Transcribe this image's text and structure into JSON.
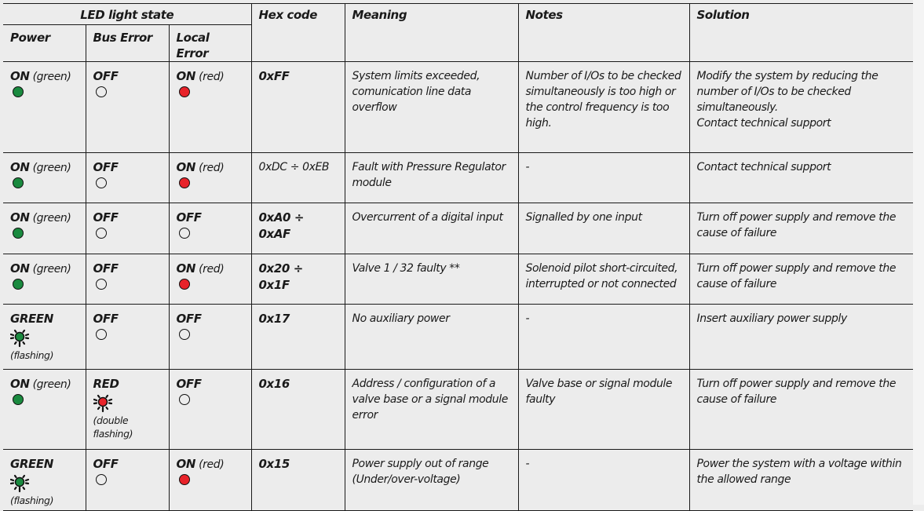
{
  "headers": {
    "led_group": "LED light state",
    "power": "Power",
    "bus_error": "Bus Error",
    "local_error": "Local Error",
    "hex_code": "Hex code",
    "meaning": "Meaning",
    "notes": "Notes",
    "solution": "Solution"
  },
  "colors": {
    "green": "#1a8a3f",
    "red": "#e8232a",
    "off": "#ececec"
  },
  "rows": [
    {
      "power": {
        "state": "ON",
        "sub": "(green)",
        "led": "green",
        "flashing": false
      },
      "bus": {
        "state": "OFF",
        "sub": "",
        "led": "off",
        "flashing": false
      },
      "local": {
        "state": "ON",
        "sub": "(red)",
        "led": "red",
        "flashing": false
      },
      "hex": "0xFF",
      "hex_bold": true,
      "meaning": "System limits exceeded, comunication line data overflow",
      "notes": "Number of I/Os to be checked simultaneously is too high or the control frequency is too high.",
      "solution": "Modify the system by reducing the number of I/Os to be checked simultaneously.",
      "solution2": "Contact technical support"
    },
    {
      "power": {
        "state": "ON",
        "sub": "(green)",
        "led": "green",
        "flashing": false
      },
      "bus": {
        "state": "OFF",
        "sub": "",
        "led": "off",
        "flashing": false
      },
      "local": {
        "state": "ON",
        "sub": "(red)",
        "led": "red",
        "flashing": false
      },
      "hex": "0xDC ÷ 0xEB",
      "hex_bold": false,
      "meaning": "Fault with Pressure Regulator module",
      "notes": "-",
      "solution": "Contact technical support"
    },
    {
      "power": {
        "state": "ON",
        "sub": "(green)",
        "led": "green",
        "flashing": false
      },
      "bus": {
        "state": "OFF",
        "sub": "",
        "led": "off",
        "flashing": false
      },
      "local": {
        "state": "OFF",
        "sub": "",
        "led": "off",
        "flashing": false
      },
      "hex": "0xA0 ÷ 0xAF",
      "hex_bold": true,
      "meaning": "Overcurrent of a digital input",
      "notes": "Signalled by one input",
      "solution": "Turn off power supply and remove the cause of failure"
    },
    {
      "power": {
        "state": "ON",
        "sub": "(green)",
        "led": "green",
        "flashing": false
      },
      "bus": {
        "state": "OFF",
        "sub": "",
        "led": "off",
        "flashing": false
      },
      "local": {
        "state": "ON",
        "sub": "(red)",
        "led": "red",
        "flashing": false
      },
      "hex": "0x20 ÷ 0x1F",
      "hex_bold": true,
      "meaning": "Valve 1 / 32 faulty **",
      "notes": "Solenoid pilot short-circuited, interrupted or not connected",
      "solution": "Turn off power supply and remove the cause of failure"
    },
    {
      "power": {
        "state": "GREEN",
        "sub": "(flashing)",
        "led": "green",
        "flashing": true
      },
      "bus": {
        "state": "OFF",
        "sub": "",
        "led": "off",
        "flashing": false
      },
      "local": {
        "state": "OFF",
        "sub": "",
        "led": "off",
        "flashing": false
      },
      "hex": "0x17",
      "hex_bold": true,
      "meaning": "No auxiliary power",
      "notes": "-",
      "solution": "Insert auxiliary power supply"
    },
    {
      "power": {
        "state": "ON",
        "sub": "(green)",
        "led": "green",
        "flashing": false
      },
      "bus": {
        "state": "RED",
        "sub": "(double flashing)",
        "led": "red",
        "flashing": true
      },
      "local": {
        "state": "OFF",
        "sub": "",
        "led": "off",
        "flashing": false
      },
      "hex": "0x16",
      "hex_bold": true,
      "meaning": "Address / configuration of a valve base or a signal module error",
      "notes": "Valve base or signal module faulty",
      "solution": "Turn off power supply and remove the cause of failure"
    },
    {
      "power": {
        "state": "GREEN",
        "sub": "(flashing)",
        "led": "green",
        "flashing": true
      },
      "bus": {
        "state": "OFF",
        "sub": "",
        "led": "off",
        "flashing": false
      },
      "local": {
        "state": "ON",
        "sub": "(red)",
        "led": "red",
        "flashing": false
      },
      "hex": "0x15",
      "hex_bold": true,
      "meaning": "Power supply out of range (Under/over-voltage)",
      "notes": "-",
      "solution": "Power the system  with  a voltage within the allowed range"
    }
  ]
}
